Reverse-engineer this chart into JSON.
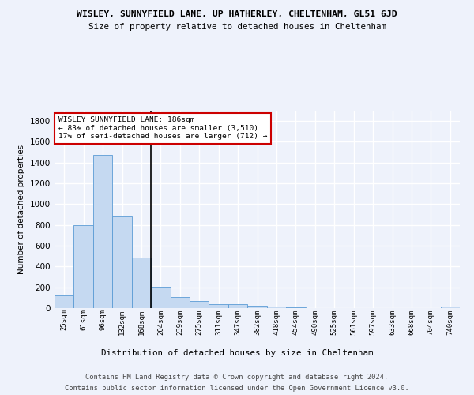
{
  "title1": "WISLEY, SUNNYFIELD LANE, UP HATHERLEY, CHELTENHAM, GL51 6JD",
  "title2": "Size of property relative to detached houses in Cheltenham",
  "xlabel": "Distribution of detached houses by size in Cheltenham",
  "ylabel": "Number of detached properties",
  "footer1": "Contains HM Land Registry data © Crown copyright and database right 2024.",
  "footer2": "Contains public sector information licensed under the Open Government Licence v3.0.",
  "categories": [
    "25sqm",
    "61sqm",
    "96sqm",
    "132sqm",
    "168sqm",
    "204sqm",
    "239sqm",
    "275sqm",
    "311sqm",
    "347sqm",
    "382sqm",
    "418sqm",
    "454sqm",
    "490sqm",
    "525sqm",
    "561sqm",
    "597sqm",
    "633sqm",
    "668sqm",
    "704sqm",
    "740sqm"
  ],
  "values": [
    120,
    800,
    1475,
    885,
    490,
    205,
    105,
    65,
    40,
    35,
    25,
    18,
    5,
    2,
    1,
    1,
    1,
    1,
    1,
    1,
    12
  ],
  "highlight_index": 4,
  "bar_color": "#c5d9f1",
  "bar_edge_color": "#5b9bd5",
  "annotation_text": "WISLEY SUNNYFIELD LANE: 186sqm\n← 83% of detached houses are smaller (3,510)\n17% of semi-detached houses are larger (712) →",
  "annotation_box_color": "#ffffff",
  "annotation_border_color": "#cc0000",
  "ylim": [
    0,
    1900
  ],
  "yticks": [
    0,
    200,
    400,
    600,
    800,
    1000,
    1200,
    1400,
    1600,
    1800
  ],
  "bg_color": "#eef2fb",
  "grid_color": "#ffffff",
  "vline_color": "#000000"
}
